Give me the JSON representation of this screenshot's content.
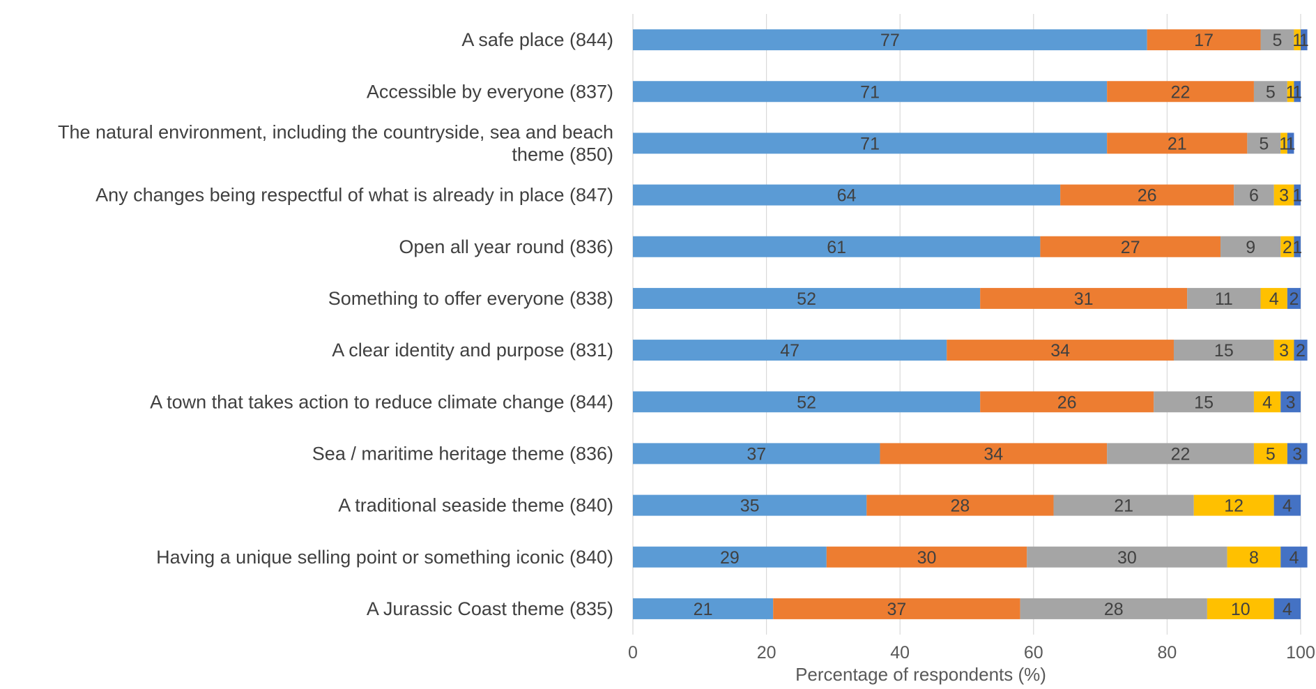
{
  "chart_data": {
    "type": "bar",
    "orientation": "horizontal",
    "stacked": true,
    "xlabel": "Percentage of respondents (%)",
    "xlim": [
      0,
      100
    ],
    "xticks": [
      0,
      20,
      40,
      60,
      80,
      100
    ],
    "grid": "vertical",
    "legend": "none",
    "categories": [
      [
        "A safe place (844)"
      ],
      [
        "Accessible by everyone (837)"
      ],
      [
        "The natural environment, including the countryside, sea and beach",
        "theme (850)"
      ],
      [
        "Any changes being respectful of what is already in place (847)"
      ],
      [
        "Open all year round (836)"
      ],
      [
        "Something to offer everyone (838)"
      ],
      [
        "A clear identity and purpose (831)"
      ],
      [
        "A town that takes action to reduce climate change (844)"
      ],
      [
        "Sea / maritime heritage theme (836)"
      ],
      [
        "A traditional seaside theme (840)"
      ],
      [
        "Having a unique selling point or something iconic (840)"
      ],
      [
        "A Jurassic Coast theme (835)"
      ]
    ],
    "series": [
      {
        "color": "#5B9BD5",
        "values": [
          77,
          71,
          71,
          64,
          61,
          52,
          47,
          52,
          37,
          35,
          29,
          21
        ]
      },
      {
        "color": "#ED7D31",
        "values": [
          17,
          22,
          21,
          26,
          27,
          31,
          34,
          26,
          34,
          28,
          30,
          37
        ]
      },
      {
        "color": "#A5A5A5",
        "values": [
          5,
          5,
          5,
          6,
          9,
          11,
          15,
          15,
          22,
          21,
          30,
          28
        ]
      },
      {
        "color": "#FFC000",
        "values": [
          1,
          1,
          1,
          3,
          2,
          4,
          3,
          4,
          5,
          12,
          8,
          10
        ]
      },
      {
        "color": "#4472C4",
        "values": [
          1,
          1,
          1,
          1,
          1,
          2,
          2,
          3,
          3,
          4,
          4,
          4
        ]
      }
    ]
  }
}
